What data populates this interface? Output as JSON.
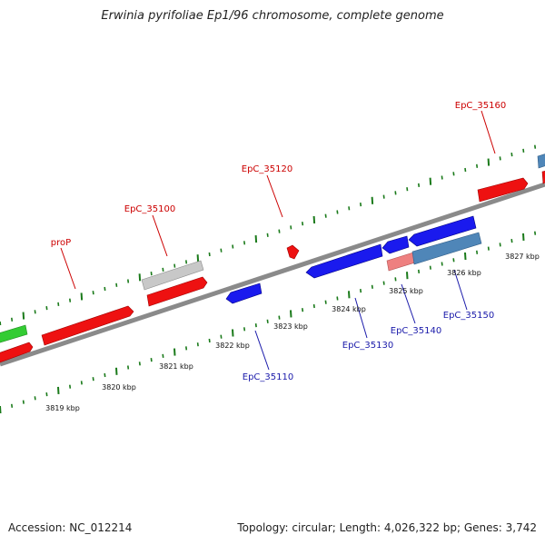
{
  "title": "Erwinia pyrifoliae Ep1/96 chromosome, complete genome",
  "footer": {
    "accession": "Accession: NC_012214",
    "summary": "Topology: circular; Length: 4,026,322 bp; Genes: 3,742"
  },
  "colors": {
    "backbone": "#808080",
    "tick": "#1a7a1a",
    "forward_label": "#cc0000",
    "reverse_label": "#1a1aaa",
    "red_gene": "#ee1111",
    "blue_gene": "#1a1aee",
    "gray_gene": "#c8c8c8",
    "green_gene": "#33cc33",
    "pink_gene": "#ee8080",
    "steel_gene": "#4f86b8"
  },
  "scale_labels": [
    "3819 kbp",
    "3820 kbp",
    "3821 kbp",
    "3822 kbp",
    "3823 kbp",
    "3824 kbp",
    "3825 kbp",
    "3826 kbp",
    "3827 kbp"
  ],
  "forward_labels": [
    "proP",
    "EpC_35100",
    "EpC_35120",
    "EpC_35160"
  ],
  "reverse_labels": [
    "EpC_35110",
    "EpC_35130",
    "EpC_35140",
    "EpC_35150"
  ]
}
